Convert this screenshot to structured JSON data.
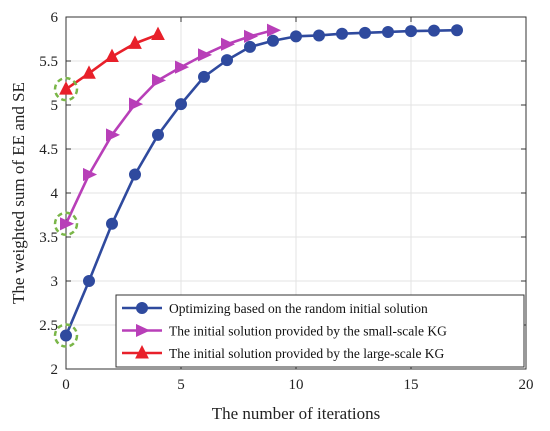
{
  "chart_data": {
    "type": "line",
    "xlabel": "The number of iterations",
    "ylabel": "The weighted sum of EE and SE",
    "xlim": [
      0,
      20
    ],
    "ylim": [
      2,
      6
    ],
    "xticks": [
      0,
      5,
      10,
      15,
      20
    ],
    "yticks": [
      2,
      2.5,
      3,
      3.5,
      4,
      4.5,
      5,
      5.5,
      6
    ],
    "xtick_labels": [
      "0",
      "5",
      "10",
      "15",
      "20"
    ],
    "ytick_labels": [
      "2",
      "2.5",
      "3",
      "3.5",
      "4",
      "4.5",
      "5",
      "5.5",
      "6"
    ],
    "grid": true,
    "legend_position": "bottom-right",
    "series": [
      {
        "name": "Optimizing based on the random initial solution",
        "color": "#2f4a9e",
        "marker": "circle",
        "x": [
          0,
          1,
          2,
          3,
          4,
          5,
          6,
          7,
          8,
          9,
          10,
          11,
          12,
          13,
          14,
          15,
          16,
          17
        ],
        "y": [
          2.38,
          3.0,
          3.65,
          4.21,
          4.66,
          5.01,
          5.32,
          5.51,
          5.66,
          5.73,
          5.78,
          5.79,
          5.81,
          5.82,
          5.83,
          5.84,
          5.845,
          5.85
        ]
      },
      {
        "name": "The initial solution provided by the small-scale KG",
        "color": "#b83fb8",
        "marker": "triangle-right",
        "x": [
          0,
          1,
          2,
          3,
          4,
          5,
          6,
          7,
          8,
          9
        ],
        "y": [
          3.65,
          4.21,
          4.66,
          5.01,
          5.28,
          5.43,
          5.57,
          5.69,
          5.78,
          5.85
        ]
      },
      {
        "name": "The initial solution provided by the large-scale KG",
        "color": "#e8202a",
        "marker": "triangle-up",
        "x": [
          0,
          1,
          2,
          3,
          4
        ],
        "y": [
          5.18,
          5.36,
          5.55,
          5.7,
          5.8
        ]
      }
    ],
    "annotations": [
      {
        "type": "dashed-circle",
        "x": 0,
        "y": 2.38,
        "color": "#7ab648"
      },
      {
        "type": "dashed-circle",
        "x": 0,
        "y": 3.65,
        "color": "#7ab648"
      },
      {
        "type": "dashed-circle",
        "x": 0,
        "y": 5.18,
        "color": "#7ab648"
      }
    ]
  }
}
